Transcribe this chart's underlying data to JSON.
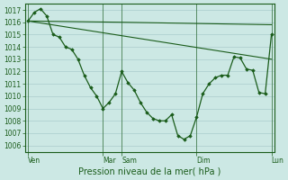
{
  "background_color": "#cce8e4",
  "grid_color": "#aacccc",
  "line_color": "#1a5c1a",
  "marker_color": "#1a5c1a",
  "xlabel": "Pression niveau de la mer( hPa )",
  "ylim": [
    1005.5,
    1017.5
  ],
  "yticks": [
    1006,
    1007,
    1008,
    1009,
    1010,
    1011,
    1012,
    1013,
    1014,
    1015,
    1016,
    1017
  ],
  "xtick_labels": [
    "Ven",
    "Mar",
    "Sam",
    "Dim",
    "Lun"
  ],
  "xtick_positions": [
    0,
    24,
    30,
    54,
    78
  ],
  "vline_positions": [
    0,
    24,
    30,
    54,
    78
  ],
  "line1_x": [
    0,
    2,
    4,
    6,
    8,
    10,
    12,
    14,
    16,
    18,
    20,
    22,
    24,
    26,
    28,
    30,
    32,
    34,
    36,
    38,
    40,
    42,
    44,
    46,
    48,
    50,
    52,
    54,
    56,
    58,
    60,
    62,
    64,
    66,
    68,
    70,
    72,
    74,
    76,
    78
  ],
  "line1_y": [
    1016.1,
    1016.8,
    1017.1,
    1016.5,
    1015.0,
    1014.8,
    1014.0,
    1013.8,
    1013.0,
    1011.7,
    1010.7,
    1010.0,
    1009.0,
    1009.5,
    1010.2,
    1012.0,
    1011.1,
    1010.5,
    1009.5,
    1008.7,
    1008.2,
    1008.0,
    1008.0,
    1008.5,
    1006.8,
    1006.5,
    1006.8,
    1008.3,
    1010.2,
    1011.0,
    1011.5,
    1011.7,
    1011.7,
    1013.2,
    1013.1,
    1012.2,
    1012.1,
    1010.3,
    1010.2,
    1015.0
  ],
  "line2_x": [
    0,
    78
  ],
  "line2_y": [
    1016.1,
    1013.0
  ],
  "line3_x": [
    0,
    30,
    54,
    78
  ],
  "line3_y": [
    1016.1,
    1016.0,
    1015.9,
    1015.8
  ],
  "border_color": "#1a5c1a",
  "xlabel_fontsize": 7,
  "ytick_fontsize": 5.5,
  "xtick_fontsize": 5.5
}
